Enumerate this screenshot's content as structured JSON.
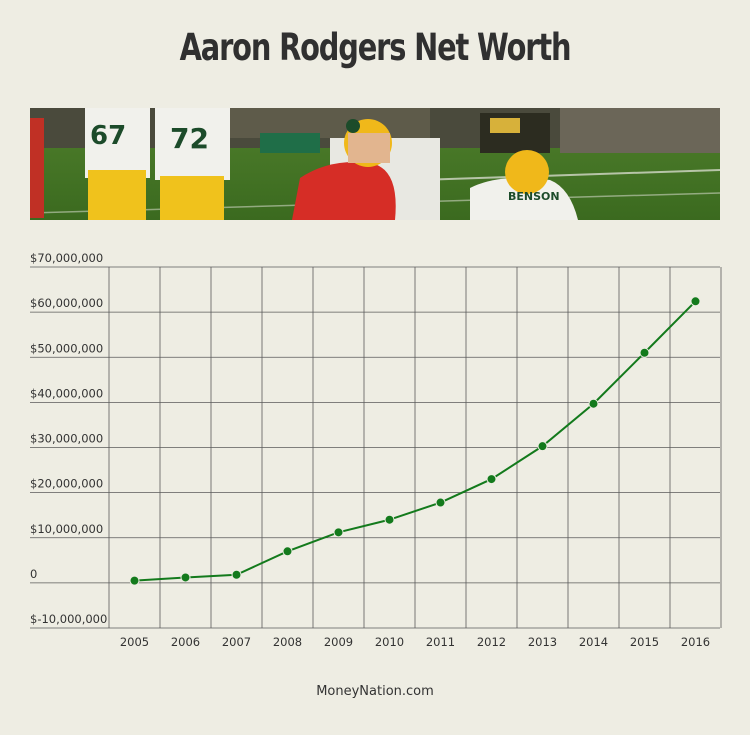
{
  "chart_data": {
    "type": "line",
    "title": "Aaron Rodgers Net Worth",
    "x": [
      "2005",
      "2006",
      "2007",
      "2008",
      "2009",
      "2010",
      "2011",
      "2012",
      "2013",
      "2014",
      "2015",
      "2016"
    ],
    "series": [
      {
        "values": [
          500000,
          1200000,
          1800000,
          7000000,
          11200000,
          14000000,
          17800000,
          23000000,
          30300000,
          39700000,
          51000000,
          62400000
        ]
      }
    ],
    "y_ticks": [
      -10000000,
      0,
      10000000,
      20000000,
      30000000,
      40000000,
      50000000,
      60000000,
      70000000
    ],
    "y_tick_labels": [
      "$-10,000,000",
      "0",
      "$10,000,000",
      "$20,000,000",
      "$30,000,000",
      "$40,000,000",
      "$50,000,000",
      "$60,000,000",
      "$70,000,000"
    ],
    "ylim": [
      -10000000,
      70000000
    ],
    "grid": true,
    "line_color": "#137a1c",
    "xlabel": "",
    "ylabel": ""
  },
  "source": "MoneyNation.com",
  "colors": {
    "background": "#eeede3",
    "grid": "#5a5a5a",
    "line": "#137a1c"
  }
}
